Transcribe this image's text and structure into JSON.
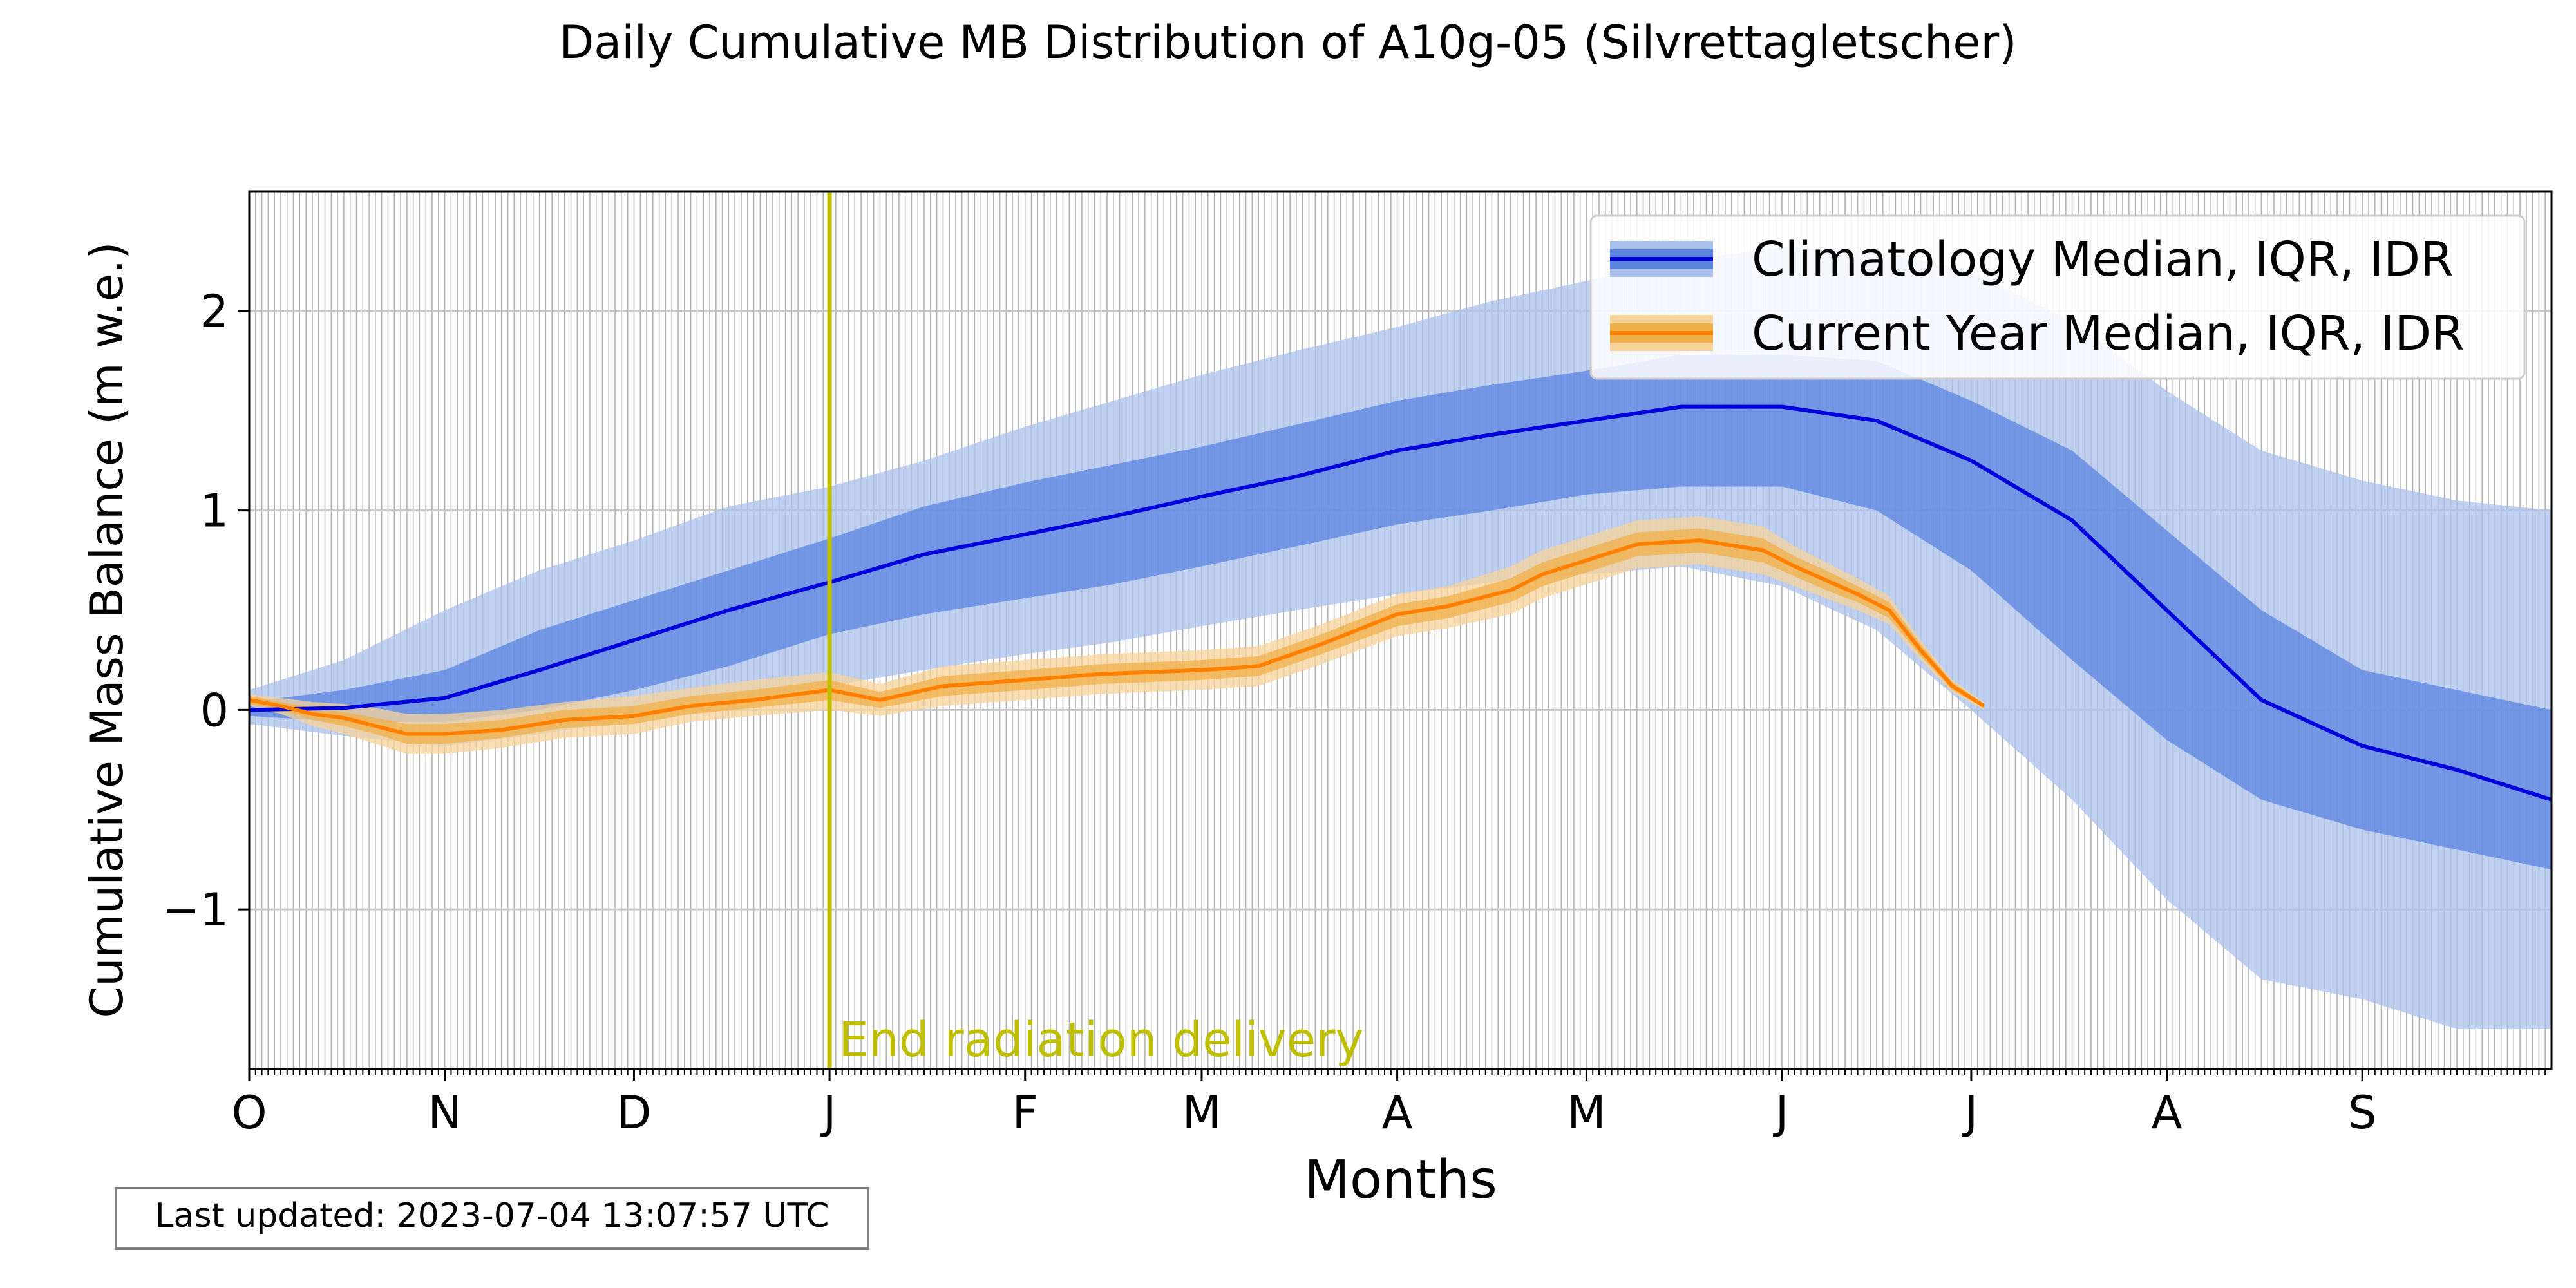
{
  "chart_data": {
    "type": "area",
    "title": "Daily Cumulative MB Distribution of A10g-05 (Silvrettagletscher)",
    "xlabel": "Months",
    "ylabel": "Cumulative Mass Balance (m w.e.)",
    "x_unit": "day of hydrological year (starting 1 October)",
    "xlim": [
      0,
      365
    ],
    "ylim": [
      -1.8,
      2.6
    ],
    "yticks": [
      -1,
      0,
      1,
      2
    ],
    "ytick_labels": [
      "−1",
      "0",
      "1",
      "2"
    ],
    "month_ticks": [
      {
        "x": 0,
        "label": "O"
      },
      {
        "x": 31,
        "label": "N"
      },
      {
        "x": 61,
        "label": "D"
      },
      {
        "x": 92,
        "label": "J"
      },
      {
        "x": 123,
        "label": "F"
      },
      {
        "x": 151,
        "label": "M"
      },
      {
        "x": 182,
        "label": "A"
      },
      {
        "x": 212,
        "label": "M"
      },
      {
        "x": 243,
        "label": "J"
      },
      {
        "x": 273,
        "label": "J"
      },
      {
        "x": 304,
        "label": "A"
      },
      {
        "x": 335,
        "label": "S"
      }
    ],
    "grid": true,
    "daily_minor_grid": true,
    "legend_position": "top-right",
    "series": [
      {
        "name": "Climatology Median, IQR, IDR",
        "color": "#0000dd",
        "iqr_color": "#5b84e0",
        "idr_color": "#a9c0ec",
        "x": [
          0,
          15,
          31,
          46,
          61,
          76,
          92,
          107,
          123,
          137,
          151,
          166,
          182,
          197,
          212,
          227,
          243,
          258,
          273,
          289,
          304,
          319,
          335,
          350,
          365
        ],
        "median": [
          0,
          0.01,
          0.06,
          0.2,
          0.35,
          0.5,
          0.64,
          0.78,
          0.88,
          0.97,
          1.07,
          1.17,
          1.3,
          1.38,
          1.45,
          1.52,
          1.52,
          1.45,
          1.25,
          0.95,
          0.5,
          0.05,
          -0.18,
          -0.3,
          -0.45
        ],
        "iqr_low": [
          -0.03,
          -0.06,
          -0.06,
          0.0,
          0.1,
          0.22,
          0.38,
          0.48,
          0.56,
          0.63,
          0.72,
          0.82,
          0.93,
          1.0,
          1.08,
          1.12,
          1.12,
          1.0,
          0.7,
          0.25,
          -0.15,
          -0.45,
          -0.6,
          -0.7,
          -0.8
        ],
        "iqr_high": [
          0.04,
          0.1,
          0.2,
          0.4,
          0.55,
          0.7,
          0.86,
          1.02,
          1.14,
          1.23,
          1.32,
          1.43,
          1.55,
          1.63,
          1.7,
          1.78,
          1.78,
          1.75,
          1.55,
          1.3,
          0.9,
          0.5,
          0.2,
          0.1,
          0.0
        ],
        "idr_low": [
          -0.07,
          -0.13,
          -0.18,
          -0.12,
          -0.05,
          0.05,
          0.12,
          0.2,
          0.28,
          0.34,
          0.42,
          0.5,
          0.58,
          0.64,
          0.68,
          0.72,
          0.62,
          0.4,
          0.0,
          -0.45,
          -0.95,
          -1.35,
          -1.45,
          -1.6,
          -1.6
        ],
        "idr_high": [
          0.1,
          0.25,
          0.5,
          0.7,
          0.85,
          1.02,
          1.12,
          1.25,
          1.42,
          1.55,
          1.68,
          1.8,
          1.92,
          2.05,
          2.15,
          2.25,
          2.32,
          2.3,
          2.2,
          1.95,
          1.6,
          1.3,
          1.15,
          1.05,
          1.0
        ]
      },
      {
        "name": "Current Year Median, IQR, IDR",
        "color": "#ff8000",
        "iqr_color": "#f0b04a",
        "idr_color": "#f7d39a",
        "x": [
          0,
          5,
          10,
          15,
          20,
          25,
          31,
          40,
          50,
          61,
          70,
          80,
          92,
          100,
          110,
          123,
          135,
          151,
          160,
          170,
          182,
          190,
          200,
          205,
          212,
          220,
          230,
          240,
          245,
          250,
          255,
          260,
          265,
          270,
          275
        ],
        "median": [
          0.05,
          0.02,
          -0.02,
          -0.04,
          -0.08,
          -0.12,
          -0.12,
          -0.1,
          -0.05,
          -0.03,
          0.02,
          0.05,
          0.1,
          0.05,
          0.12,
          0.15,
          0.18,
          0.2,
          0.22,
          0.33,
          0.48,
          0.52,
          0.6,
          0.68,
          0.75,
          0.83,
          0.85,
          0.8,
          0.72,
          0.65,
          0.58,
          0.5,
          0.3,
          0.12,
          0.02
        ],
        "iqr_low": [
          0.03,
          0.0,
          -0.05,
          -0.08,
          -0.12,
          -0.17,
          -0.17,
          -0.14,
          -0.09,
          -0.07,
          -0.02,
          0.01,
          0.05,
          0.01,
          0.07,
          0.1,
          0.13,
          0.15,
          0.17,
          0.28,
          0.42,
          0.46,
          0.54,
          0.62,
          0.69,
          0.77,
          0.79,
          0.74,
          0.67,
          0.6,
          0.54,
          0.46,
          0.27,
          0.1,
          0.01
        ],
        "iqr_high": [
          0.07,
          0.04,
          0.01,
          -0.01,
          -0.04,
          -0.07,
          -0.07,
          -0.05,
          0.0,
          0.02,
          0.07,
          0.1,
          0.15,
          0.09,
          0.17,
          0.2,
          0.23,
          0.25,
          0.27,
          0.38,
          0.53,
          0.57,
          0.66,
          0.74,
          0.81,
          0.89,
          0.91,
          0.86,
          0.77,
          0.7,
          0.62,
          0.54,
          0.33,
          0.14,
          0.03
        ],
        "idr_low": [
          0.02,
          -0.02,
          -0.08,
          -0.12,
          -0.17,
          -0.22,
          -0.22,
          -0.19,
          -0.14,
          -0.12,
          -0.06,
          -0.03,
          0.0,
          -0.03,
          0.02,
          0.05,
          0.08,
          0.1,
          0.12,
          0.23,
          0.37,
          0.41,
          0.48,
          0.56,
          0.63,
          0.71,
          0.73,
          0.68,
          0.62,
          0.56,
          0.5,
          0.43,
          0.25,
          0.09,
          0.0
        ],
        "idr_high": [
          0.08,
          0.06,
          0.04,
          0.03,
          0.01,
          -0.02,
          -0.02,
          0.0,
          0.04,
          0.07,
          0.11,
          0.15,
          0.19,
          0.13,
          0.22,
          0.25,
          0.28,
          0.3,
          0.32,
          0.43,
          0.58,
          0.62,
          0.72,
          0.8,
          0.87,
          0.95,
          0.97,
          0.92,
          0.82,
          0.74,
          0.66,
          0.57,
          0.35,
          0.15,
          0.04
        ]
      }
    ],
    "annotations": [
      {
        "type": "vline",
        "x": 92,
        "color": "#bfbf00",
        "label": "End radiation delivery"
      }
    ]
  },
  "footer": {
    "last_updated": "Last updated: 2023-07-04 13:07:57 UTC"
  }
}
